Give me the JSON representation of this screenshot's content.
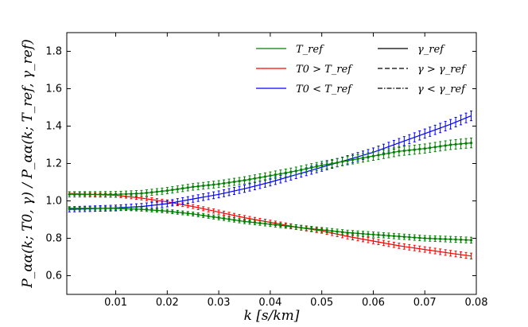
{
  "chart_data": {
    "type": "line",
    "title": "",
    "xlabel": "k [s/km]",
    "ylabel": "P_αα(k; T0, γ) / P_αα(k; T_ref, γ_ref)",
    "xlim": [
      0.0005,
      0.08
    ],
    "ylim": [
      0.5,
      1.9
    ],
    "xticks": [
      0.01,
      0.02,
      0.03,
      0.04,
      0.05,
      0.06,
      0.07,
      0.08
    ],
    "xtick_labels": [
      "0.01",
      "0.02",
      "0.03",
      "0.04",
      "0.05",
      "0.06",
      "0.07",
      "0.08"
    ],
    "yticks": [
      0.6,
      0.8,
      1.0,
      1.2,
      1.4,
      1.6,
      1.8
    ],
    "ytick_labels": [
      "0.6",
      "0.8",
      "1.0",
      "1.2",
      "1.4",
      "1.6",
      "1.8"
    ],
    "grid": false,
    "legend_position": "top-right",
    "legend": [
      {
        "label": "T_ref",
        "color": "#008000",
        "style": "solid"
      },
      {
        "label": "T0 > T_ref",
        "color": "#ff0000",
        "style": "solid"
      },
      {
        "label": "T0 < T_ref",
        "color": "#0000ff",
        "style": "solid"
      },
      {
        "label": "γ_ref",
        "color": "#000000",
        "style": "solid"
      },
      {
        "label": "γ > γ_ref",
        "color": "#000000",
        "style": "dashed"
      },
      {
        "label": "γ < γ_ref",
        "color": "#000000",
        "style": "dashdot"
      }
    ],
    "series": [
      {
        "name": "T0 > T_ref",
        "color": "#ff0000",
        "x": [
          0.001,
          0.005,
          0.01,
          0.015,
          0.02,
          0.025,
          0.03,
          0.035,
          0.04,
          0.045,
          0.05,
          0.055,
          0.06,
          0.065,
          0.07,
          0.075,
          0.079
        ],
        "values": [
          1.04,
          1.035,
          1.03,
          1.015,
          0.995,
          0.97,
          0.94,
          0.91,
          0.885,
          0.86,
          0.84,
          0.81,
          0.785,
          0.76,
          0.74,
          0.72,
          0.705
        ],
        "error": 0.012
      },
      {
        "name": "T0 < T_ref",
        "color": "#0000ff",
        "x": [
          0.001,
          0.005,
          0.01,
          0.015,
          0.02,
          0.025,
          0.03,
          0.035,
          0.04,
          0.045,
          0.05,
          0.055,
          0.06,
          0.065,
          0.07,
          0.075,
          0.079
        ],
        "values": [
          0.955,
          0.958,
          0.962,
          0.97,
          0.985,
          1.01,
          1.035,
          1.065,
          1.1,
          1.14,
          1.18,
          1.22,
          1.26,
          1.31,
          1.36,
          1.41,
          1.455
        ],
        "error": 0.02
      },
      {
        "name": "T_ref, γ > γ_ref",
        "color": "#008000",
        "dash": "dashed",
        "x": [
          0.001,
          0.005,
          0.01,
          0.015,
          0.02,
          0.025,
          0.03,
          0.035,
          0.04,
          0.045,
          0.05,
          0.055,
          0.06,
          0.065,
          0.07,
          0.075,
          0.079
        ],
        "values": [
          1.035,
          1.035,
          1.035,
          1.04,
          1.055,
          1.075,
          1.09,
          1.11,
          1.135,
          1.16,
          1.19,
          1.215,
          1.24,
          1.265,
          1.28,
          1.3,
          1.31
        ],
        "error": 0.02
      },
      {
        "name": "T_ref, γ < γ_ref",
        "color": "#008000",
        "dash": "dashdot",
        "x": [
          0.001,
          0.005,
          0.01,
          0.015,
          0.02,
          0.025,
          0.03,
          0.035,
          0.04,
          0.045,
          0.05,
          0.055,
          0.06,
          0.065,
          0.07,
          0.075,
          0.079
        ],
        "values": [
          0.96,
          0.96,
          0.96,
          0.955,
          0.945,
          0.93,
          0.91,
          0.89,
          0.875,
          0.86,
          0.845,
          0.83,
          0.82,
          0.81,
          0.8,
          0.795,
          0.79
        ],
        "error": 0.012
      }
    ]
  }
}
